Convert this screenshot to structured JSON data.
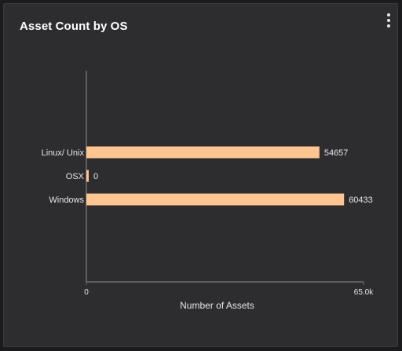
{
  "card": {
    "title": "Asset Count by OS",
    "menu_icon": "vertical-ellipsis-icon"
  },
  "colors": {
    "background": "#2d2d30",
    "bar": "#ffc58f",
    "axis": "#6e6e72",
    "text": "#e6e6e6"
  },
  "chart_data": {
    "type": "bar",
    "orientation": "horizontal",
    "title": "Asset Count by OS",
    "categories": [
      "Linux/ Unix",
      "OSX",
      "Windows"
    ],
    "values": [
      54657,
      0,
      60433
    ],
    "xlabel": "Number of Assets",
    "ylabel": "",
    "xlim": [
      0,
      65000
    ],
    "x_ticks": [
      {
        "value": 0,
        "label": "0"
      },
      {
        "value": 65000,
        "label": "65.0k"
      }
    ],
    "data_labels": [
      "54657",
      "0",
      "60433"
    ],
    "grid": false,
    "legend": "none"
  }
}
